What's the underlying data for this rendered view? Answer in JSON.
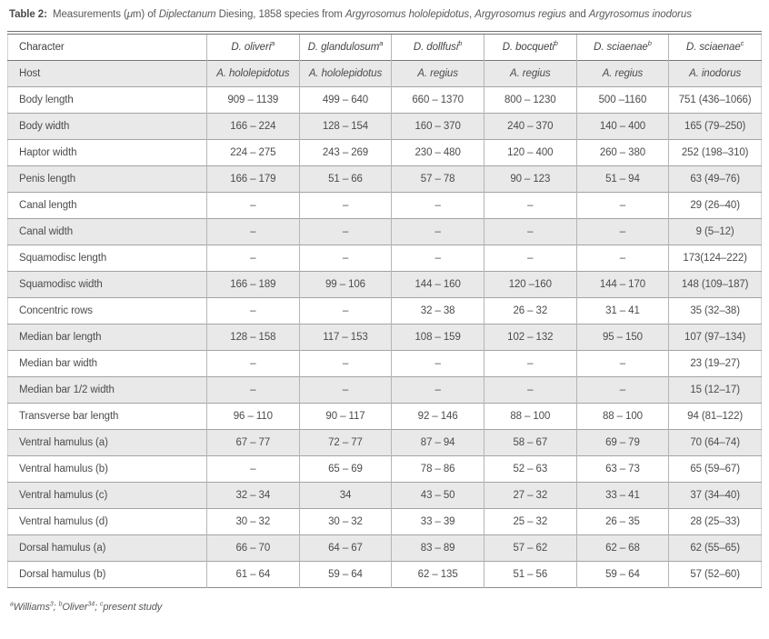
{
  "table_caption": {
    "label": "Table 2:",
    "segments": [
      {
        "text": "Measurements ("
      },
      {
        "text": "μ",
        "italic": true
      },
      {
        "text": "m) of "
      },
      {
        "text": "Diplectanum",
        "italic": true
      },
      {
        "text": " Diesing, 1858 species from "
      },
      {
        "text": "Argyrosomus hololepidotus",
        "italic": true
      },
      {
        "text": ", "
      },
      {
        "text": "Argyrosomus regius",
        "italic": true
      },
      {
        "text": " and "
      },
      {
        "text": "Argyrosomus inodorus",
        "italic": true
      }
    ]
  },
  "table": {
    "header": {
      "character_label": "Character",
      "columns": [
        {
          "name": "D. oliveri",
          "sup": "a"
        },
        {
          "name": "D. glandulosum",
          "sup": "a"
        },
        {
          "name": "D. dollfusi",
          "sup": "b"
        },
        {
          "name": "D. bocqueti",
          "sup": "b"
        },
        {
          "name": "D. sciaenae",
          "sup": "b"
        },
        {
          "name": "D. sciaenae",
          "sup": "c"
        }
      ]
    },
    "rows": [
      {
        "character": "Host",
        "italic_values": true,
        "values": [
          "A. hololepidotus",
          "A. hololepidotus",
          "A. regius",
          "A. regius",
          "A. regius",
          "A. inodorus"
        ]
      },
      {
        "character": "Body length",
        "values": [
          "909 – 1139",
          "499 – 640",
          "660 – 1370",
          "800 – 1230",
          "500 –1160",
          "751 (436–1066)"
        ]
      },
      {
        "character": "Body width",
        "values": [
          "166 – 224",
          "128 – 154",
          "160 – 370",
          "240 – 370",
          "140 – 400",
          "165 (79–250)"
        ]
      },
      {
        "character": "Haptor width",
        "values": [
          "224 – 275",
          "243 – 269",
          "230 – 480",
          "120 – 400",
          "260 – 380",
          "252 (198–310)"
        ]
      },
      {
        "character": "Penis length",
        "values": [
          "166 – 179",
          "51 – 66",
          "57 – 78",
          "90 – 123",
          "51 – 94",
          "63 (49–76)"
        ]
      },
      {
        "character": "Canal length",
        "values": [
          "–",
          "–",
          "–",
          "–",
          "–",
          "29 (26–40)"
        ]
      },
      {
        "character": "Canal width",
        "values": [
          "–",
          "–",
          "–",
          "–",
          "–",
          "9 (5–12)"
        ]
      },
      {
        "character": "Squamodisc length",
        "values": [
          "–",
          "–",
          "–",
          "–",
          "–",
          "173(124–222)"
        ]
      },
      {
        "character": "Squamodisc width",
        "values": [
          "166 – 189",
          "99 – 106",
          "144 – 160",
          "120 –160",
          "144 – 170",
          "148 (109–187)"
        ]
      },
      {
        "character": "Concentric rows",
        "values": [
          "–",
          "–",
          "32 – 38",
          "26 – 32",
          "31 – 41",
          "35 (32–38)"
        ]
      },
      {
        "character": "Median bar length",
        "values": [
          "128 – 158",
          "117 – 153",
          "108 – 159",
          "102 – 132",
          "95 – 150",
          "107 (97–134)"
        ]
      },
      {
        "character": "Median bar width",
        "values": [
          "–",
          "–",
          "–",
          "–",
          "–",
          "23 (19–27)"
        ]
      },
      {
        "character": "Median bar 1/2 width",
        "values": [
          "–",
          "–",
          "–",
          "–",
          "–",
          "15 (12–17)"
        ]
      },
      {
        "character": "Transverse bar length",
        "values": [
          "96 – 110",
          "90 – 117",
          "92 – 146",
          "88 – 100",
          "88 – 100",
          "94 (81–122)"
        ]
      },
      {
        "character": "Ventral hamulus (a)",
        "values": [
          "67 – 77",
          "72 – 77",
          "87 – 94",
          "58 – 67",
          "69 – 79",
          "70 (64–74)"
        ]
      },
      {
        "character": "Ventral hamulus (b)",
        "values": [
          "–",
          "65 – 69",
          "78 – 86",
          "52 – 63",
          "63 – 73",
          "65 (59–67)"
        ]
      },
      {
        "character": "Ventral hamulus (c)",
        "values": [
          "32 – 34",
          "34",
          "43 – 50",
          "27 – 32",
          "33 – 41",
          "37 (34–40)"
        ]
      },
      {
        "character": "Ventral hamulus (d)",
        "values": [
          "30 – 32",
          "30 – 32",
          "33 – 39",
          "25 – 32",
          "26 – 35",
          "28 (25–33)"
        ]
      },
      {
        "character": "Dorsal hamulus (a)",
        "values": [
          "66 – 70",
          "64 – 67",
          "83 – 89",
          "57 – 62",
          "62 – 68",
          "62 (55–65)"
        ]
      },
      {
        "character": "Dorsal hamulus (b)",
        "values": [
          "61 – 64",
          "59 – 64",
          "62 – 135",
          "51 – 56",
          "59 – 64",
          "57 (52–60)"
        ]
      }
    ]
  },
  "footnote": {
    "segments": [
      {
        "sup": "a"
      },
      {
        "text": "Williams"
      },
      {
        "sup": "3"
      },
      {
        "text": "; "
      },
      {
        "sup": "b"
      },
      {
        "text": "Oliver"
      },
      {
        "sup": "34"
      },
      {
        "text": "; "
      },
      {
        "sup": "c"
      },
      {
        "text": "present study"
      }
    ]
  },
  "colors": {
    "text": "#4b4c4e",
    "row_shade": "#e9e9ea",
    "border_vertical": "#b4b5b7",
    "border_horizontal": "#a2a3a5",
    "border_top_double": "#737476"
  }
}
